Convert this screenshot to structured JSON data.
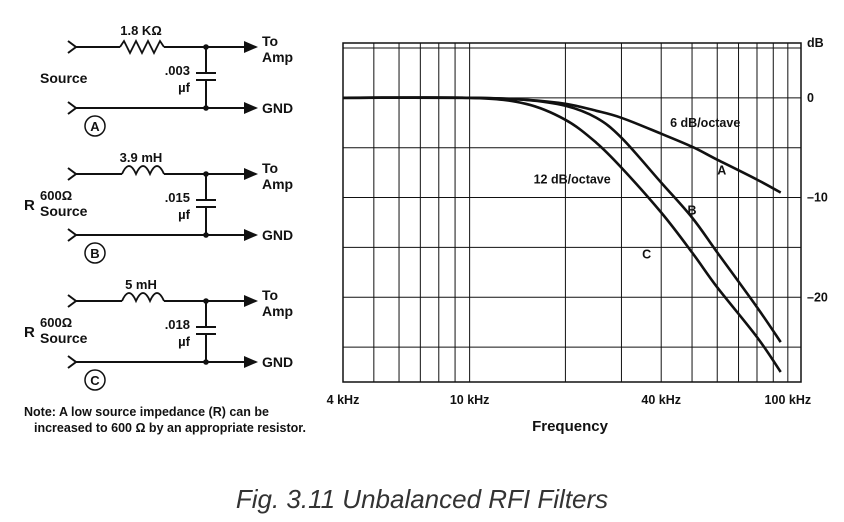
{
  "circuits": [
    {
      "id": "A",
      "series_value": "1.8 KΩ",
      "cap_value": ".003",
      "cap_unit": "µf",
      "source_r": "",
      "source_label": "Source",
      "out_label": "To Amp",
      "out_to": "To",
      "out_amp": "Amp",
      "gnd_label": "GND",
      "element": "resistor"
    },
    {
      "id": "B",
      "series_value": "3.9 mH",
      "cap_value": ".015",
      "cap_unit": "µf",
      "source_r": "R",
      "source_ohm": "600Ω",
      "source_label": "Source",
      "out_to": "To",
      "out_amp": "Amp",
      "gnd_label": "GND",
      "element": "inductor"
    },
    {
      "id": "C",
      "series_value": "5 mH",
      "cap_value": ".018",
      "cap_unit": "µf",
      "source_r": "R",
      "source_ohm": "600Ω",
      "source_label": "Source",
      "out_to": "To",
      "out_amp": "Amp",
      "gnd_label": "GND",
      "element": "inductor"
    }
  ],
  "note": {
    "line1": "Note:  A low source impedance (R) can be",
    "line2": "increased to 600 Ω by an appropriate resistor."
  },
  "chart_data": {
    "type": "line",
    "xlabel": "Frequency",
    "x_scale": "log",
    "xlim": [
      4,
      110
    ],
    "ylim": [
      -28.5,
      5.5
    ],
    "x_tick_labels": [
      {
        "value": 4,
        "label": "4 kHz"
      },
      {
        "value": 10,
        "label": "10 kHz"
      },
      {
        "value": 40,
        "label": "40 kHz"
      },
      {
        "value": 100,
        "label": "100 kHz"
      }
    ],
    "y_unit_label": "dB",
    "y_tick_labels": [
      {
        "value": 0,
        "label": "0"
      },
      {
        "value": -10,
        "label": "–10"
      },
      {
        "value": -20,
        "label": "–20"
      }
    ],
    "series": [
      {
        "name": "A",
        "x": [
          4,
          10,
          15,
          20,
          25,
          30,
          40,
          50,
          60,
          80,
          95
        ],
        "y": [
          0,
          0,
          -0.2,
          -0.6,
          -1.3,
          -2.0,
          -3.6,
          -4.9,
          -6.2,
          -8.2,
          -9.5
        ]
      },
      {
        "name": "B",
        "x": [
          4,
          10,
          15,
          20,
          25,
          30,
          40,
          50,
          60,
          80,
          95
        ],
        "y": [
          0,
          0,
          -0.2,
          -0.8,
          -2.0,
          -4.0,
          -8.5,
          -12.0,
          -15.5,
          -21.0,
          -24.5
        ]
      },
      {
        "name": "C",
        "x": [
          4,
          10,
          15,
          20,
          25,
          30,
          40,
          50,
          60,
          80,
          95
        ],
        "y": [
          0,
          0,
          -0.6,
          -2.2,
          -4.5,
          -7.0,
          -11.5,
          -15.5,
          -19.0,
          -24.0,
          -27.5
        ]
      }
    ],
    "annotations": [
      {
        "text": "6 dB/octave",
        "x": 55,
        "y": -2.5
      },
      {
        "text": "12 dB/octave",
        "x": 21,
        "y": -8.2
      },
      {
        "text": "A",
        "x": 62,
        "y": -7.3
      },
      {
        "text": "B",
        "x": 50,
        "y": -11.3
      },
      {
        "text": "C",
        "x": 36,
        "y": -15.7
      }
    ],
    "grid": true
  },
  "caption": "Fig. 3.11  Unbalanced RFI Filters"
}
